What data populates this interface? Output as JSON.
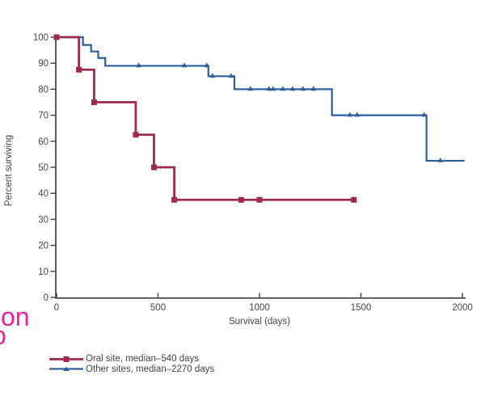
{
  "page": {
    "background": "#ffffff"
  },
  "fragments": {
    "text_top": "on",
    "text_bottom": "o",
    "color": "#ee1f9e"
  },
  "axes_style": {
    "axis_color": "#3e3f42",
    "tick_label_color": "#45464c"
  },
  "chart_data": {
    "type": "line",
    "subtype": "kaplan-meier-step",
    "title": "",
    "xlabel": "Survival (days)",
    "ylabel": "Percent surviving",
    "xlim": [
      0,
      2000
    ],
    "ylim": [
      0,
      100
    ],
    "x_ticks": [
      0,
      500,
      1000,
      1500,
      2000
    ],
    "y_ticks": [
      0,
      10,
      20,
      30,
      40,
      50,
      60,
      70,
      80,
      90,
      100
    ],
    "grid": false,
    "legend_position": "bottom-left",
    "series": [
      {
        "name": "Oral site, median–540 days",
        "color": "#9e2a52",
        "marker": "square",
        "steps": [
          [
            0,
            100
          ],
          [
            110,
            87.5
          ],
          [
            185,
            75
          ],
          [
            390,
            62.5
          ],
          [
            480,
            50
          ],
          [
            580,
            37.5
          ]
        ],
        "end_x": 1465,
        "censor_marks": [
          [
            910,
            37.5
          ],
          [
            1000,
            37.5
          ],
          [
            1465,
            37.5
          ]
        ]
      },
      {
        "name": "Other sites, median–2270 days",
        "color": "#2d5d9e",
        "marker": "triangle",
        "steps": [
          [
            0,
            100
          ],
          [
            130,
            97
          ],
          [
            170,
            94.5
          ],
          [
            205,
            92
          ],
          [
            240,
            89
          ],
          [
            748,
            85
          ],
          [
            876,
            80
          ],
          [
            1357,
            70
          ],
          [
            1823,
            52.5
          ]
        ],
        "end_x": 2010,
        "censor_marks": [
          [
            405,
            89
          ],
          [
            630,
            89
          ],
          [
            740,
            89
          ],
          [
            768,
            85
          ],
          [
            860,
            85
          ],
          [
            955,
            80
          ],
          [
            1047,
            80
          ],
          [
            1067,
            80
          ],
          [
            1115,
            80
          ],
          [
            1163,
            80
          ],
          [
            1214,
            80
          ],
          [
            1266,
            80
          ],
          [
            1445,
            70
          ],
          [
            1481,
            70
          ],
          [
            1811,
            70
          ],
          [
            1891,
            52.5
          ]
        ]
      }
    ]
  }
}
